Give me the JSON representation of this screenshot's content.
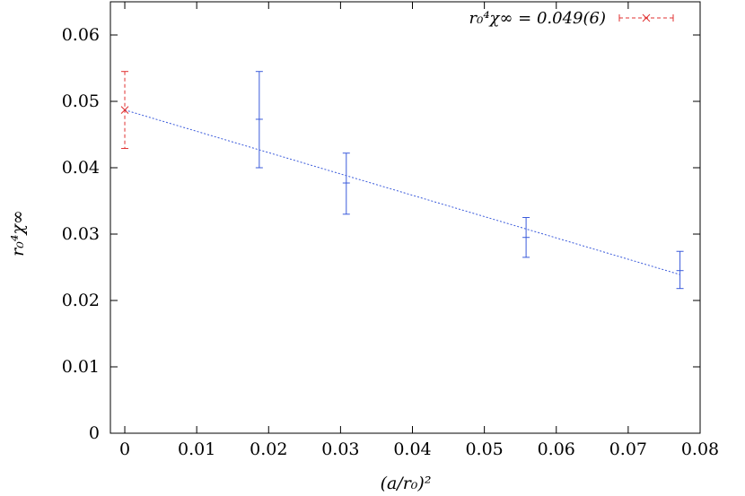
{
  "chart_data": {
    "type": "scatter",
    "xlabel": "(a/r₀)²",
    "ylabel": "r₀⁴χ∞",
    "xlim": [
      -0.002,
      0.08
    ],
    "ylim": [
      0,
      0.065
    ],
    "x_ticks": [
      "0",
      "0.01",
      "0.02",
      "0.03",
      "0.04",
      "0.05",
      "0.06",
      "0.07",
      "0.08"
    ],
    "x_tick_values": [
      0,
      0.01,
      0.02,
      0.03,
      0.04,
      0.05,
      0.06,
      0.07,
      0.08
    ],
    "y_ticks": [
      "0",
      "0.01",
      "0.02",
      "0.03",
      "0.04",
      "0.05",
      "0.06"
    ],
    "y_tick_values": [
      0,
      0.01,
      0.02,
      0.03,
      0.04,
      0.05,
      0.06
    ],
    "grid": false,
    "legend_position": "top-right",
    "series": [
      {
        "kind": "errorbars",
        "color": "#3b5bdb",
        "x": [
          0.0187,
          0.0308,
          0.0558,
          0.0772
        ],
        "y": [
          0.0473,
          0.0377,
          0.0295,
          0.0245
        ],
        "yerr_low": [
          0.0073,
          0.0047,
          0.003,
          0.0027
        ],
        "yerr_high": [
          0.0072,
          0.0045,
          0.003,
          0.0029
        ]
      },
      {
        "kind": "fit-line",
        "color": "#3b5bdb",
        "x": [
          0,
          0.0772
        ],
        "y": [
          0.0487,
          0.0239
        ]
      },
      {
        "kind": "extrapolation",
        "name": "r₀⁴χ∞ = 0.049(6)",
        "color": "#e03131",
        "x": [
          0
        ],
        "y": [
          0.0487
        ],
        "yerr_low": [
          0.0058
        ],
        "yerr_high": [
          0.0058
        ]
      }
    ]
  }
}
